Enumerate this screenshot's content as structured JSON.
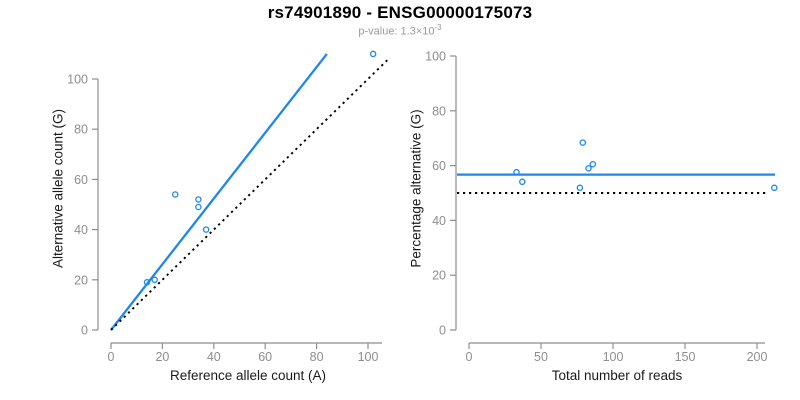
{
  "header": {
    "title": "rs74901890 - ENSG00000175073",
    "p_value_text": "p-value: 1.3×10",
    "p_value_exponent": "-3"
  },
  "colors": {
    "accent_blue": "#1E87E8",
    "dotted_line": "#000000",
    "axis_line": "#8E8E8E",
    "tick_label": "#8E8E8E",
    "axis_title": "#1A1A1A",
    "subtitle": "#999999"
  },
  "chart_data": [
    {
      "type": "scatter",
      "panel": "left",
      "xlabel": "Reference allele count (A)",
      "ylabel": "Alternative allele count (G)",
      "xlim": [
        0,
        108
      ],
      "ylim": [
        0,
        110
      ],
      "x_ticks": [
        0,
        20,
        40,
        60,
        80,
        100
      ],
      "y_ticks": [
        0,
        20,
        40,
        60,
        80,
        100
      ],
      "grid": false,
      "points": [
        [
          14,
          19
        ],
        [
          17,
          20
        ],
        [
          25,
          54
        ],
        [
          34,
          49
        ],
        [
          34,
          52
        ],
        [
          37,
          40
        ],
        [
          102,
          110
        ]
      ],
      "lines": [
        {
          "name": "allelic-ratio-fit-line",
          "style": "solid",
          "from": [
            0,
            0
          ],
          "to": [
            84,
            110
          ]
        },
        {
          "name": "identity-50pct-line",
          "style": "dotted",
          "from": [
            0,
            0
          ],
          "to": [
            107.5,
            107.5
          ]
        }
      ]
    },
    {
      "type": "scatter",
      "panel": "right",
      "xlabel": "Total number of reads",
      "ylabel": "Percentage alternative (G)",
      "xlim": [
        0,
        215
      ],
      "ylim": [
        0,
        100
      ],
      "x_ticks": [
        0,
        50,
        100,
        150,
        200
      ],
      "y_ticks": [
        0,
        20,
        40,
        60,
        80,
        100
      ],
      "grid": false,
      "points": [
        [
          33,
          57.6
        ],
        [
          37,
          54.1
        ],
        [
          77,
          51.9
        ],
        [
          79,
          68.4
        ],
        [
          83,
          59.0
        ],
        [
          86,
          60.5
        ],
        [
          212,
          51.9
        ]
      ],
      "lines": [
        {
          "name": "mean-percentage-line",
          "style": "solid",
          "y": 56.7
        },
        {
          "name": "fifty-percent-line",
          "style": "dotted",
          "y": 50
        }
      ]
    }
  ]
}
